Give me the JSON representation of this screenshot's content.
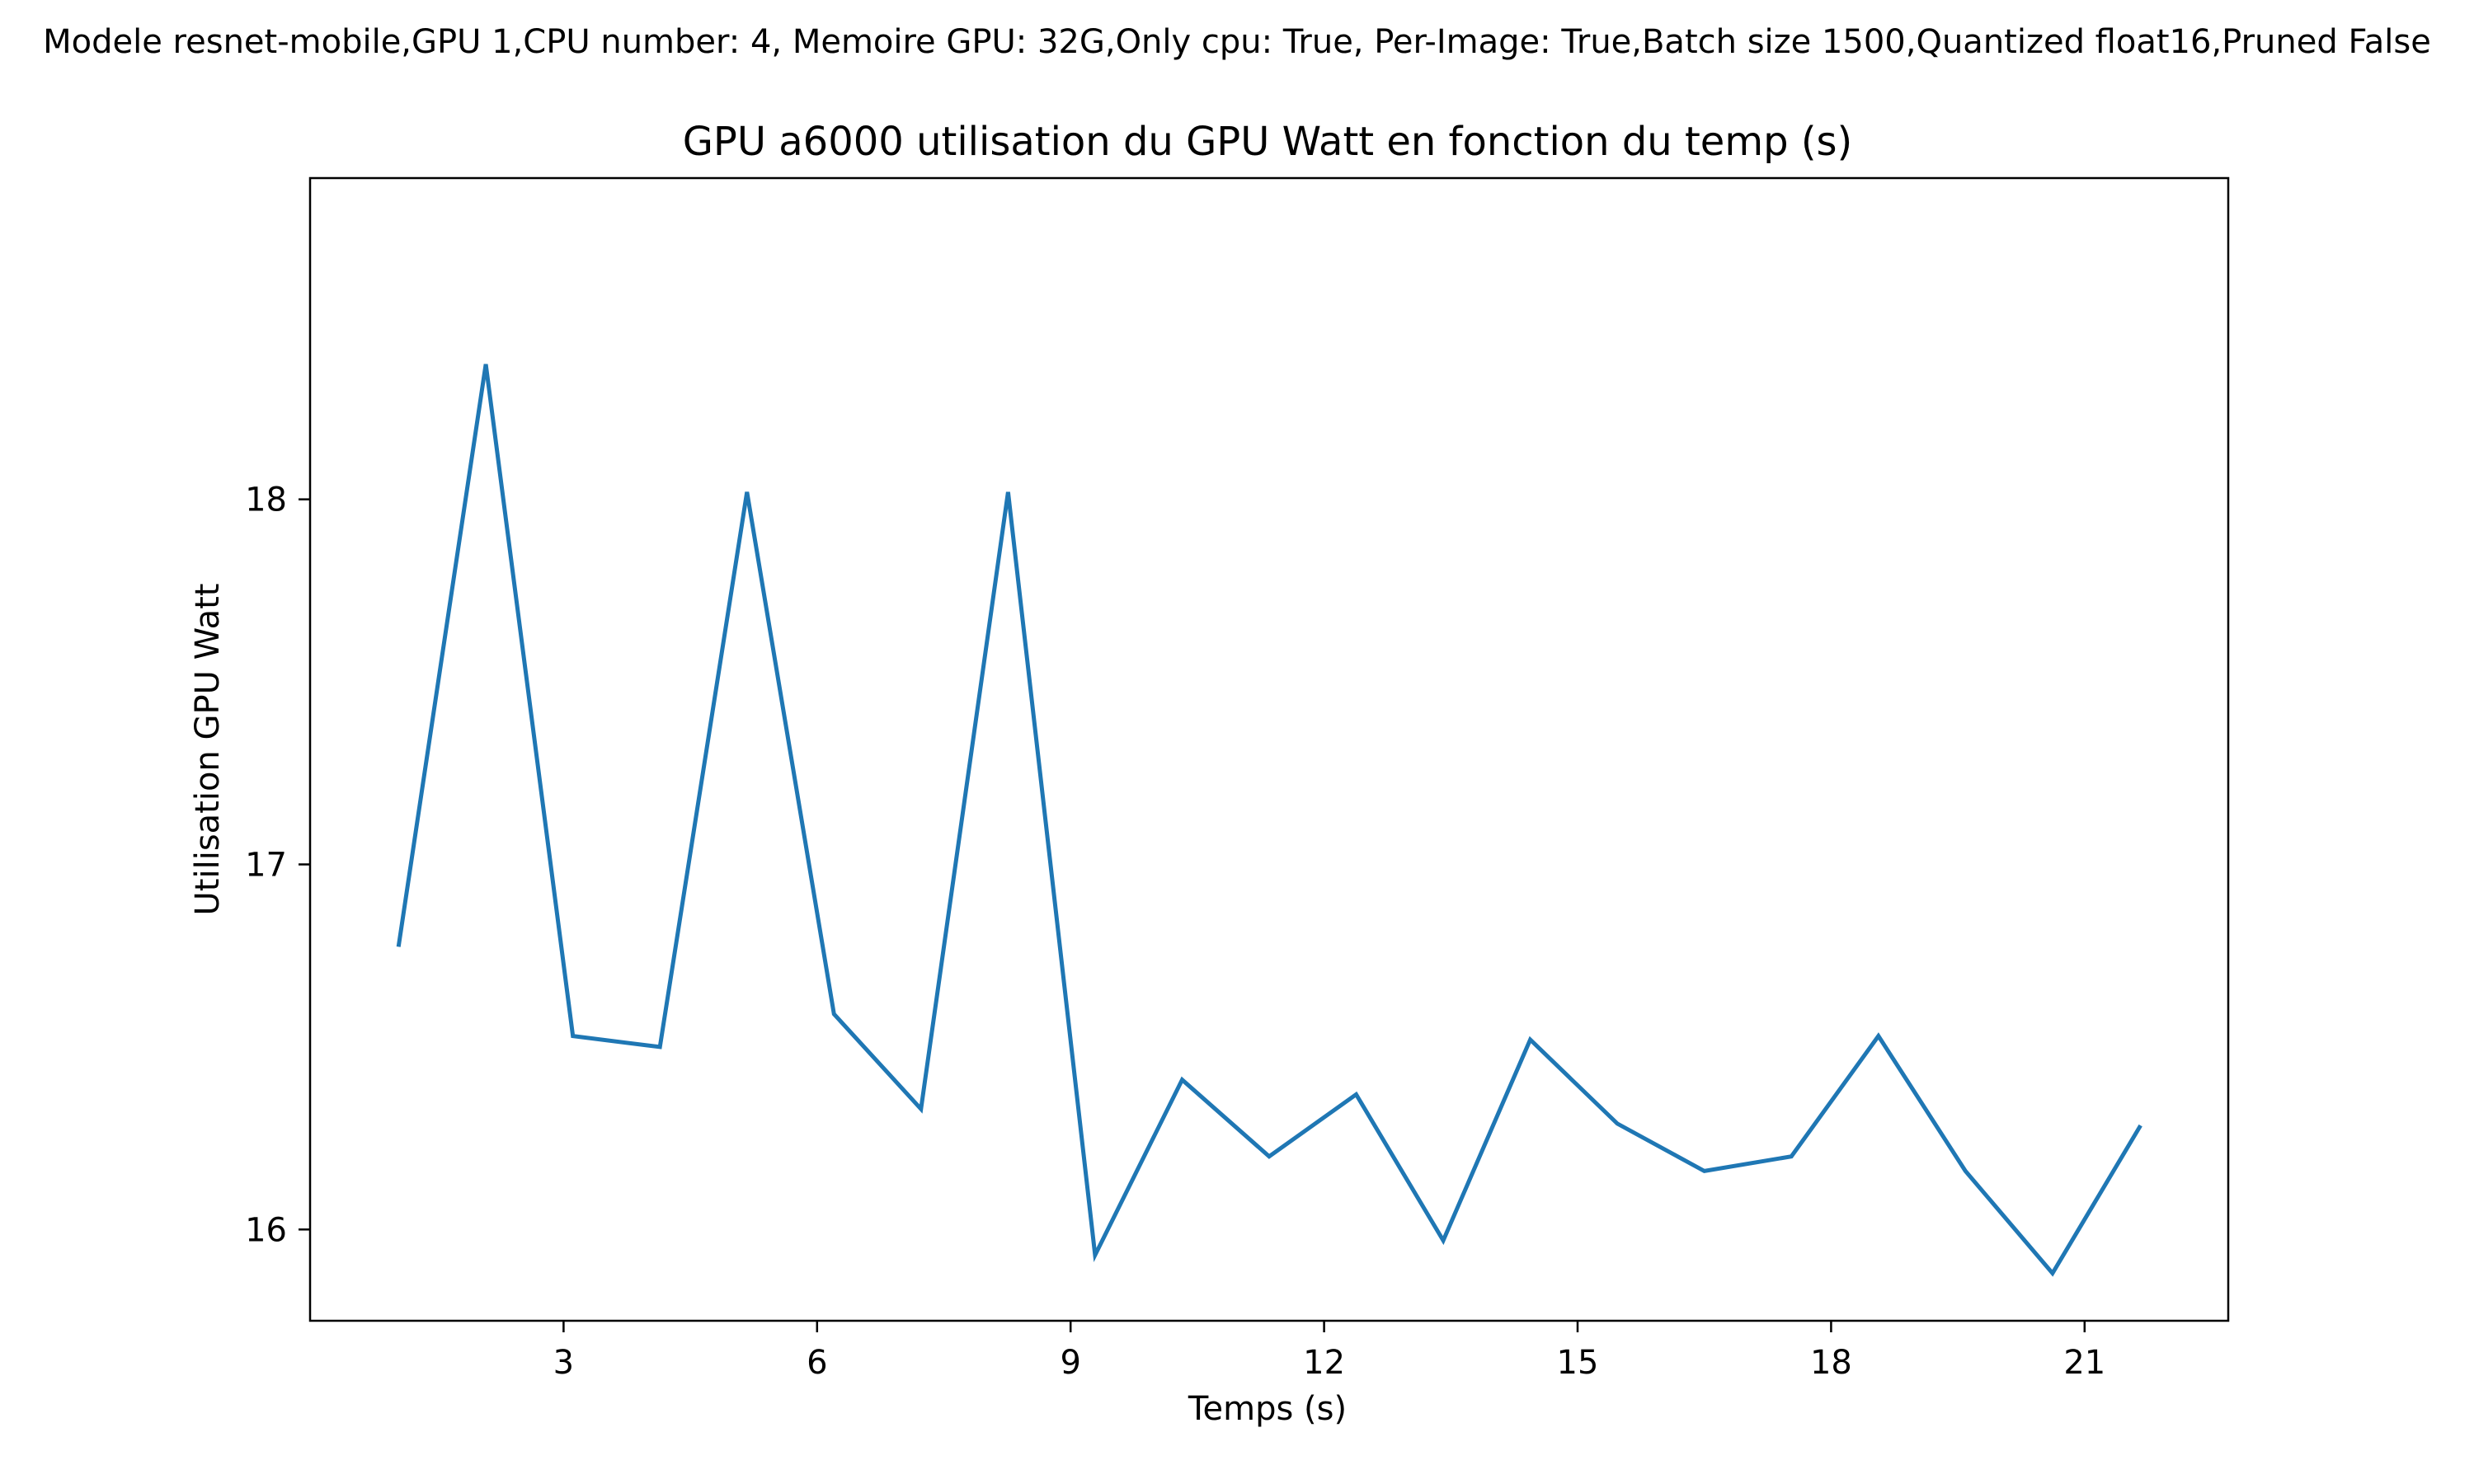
{
  "chart_data": {
    "type": "line",
    "suptitle": "Modele resnet-mobile,GPU 1,CPU number: 4, Memoire GPU: 32G,Only cpu: True, Per-Image: True,Batch size 1500,Quantized float16,Pruned False",
    "title": "GPU a6000 utilisation du GPU Watt en fonction du temp (s)",
    "xlabel": "Temps (s)",
    "ylabel": "Utilisation GPU Watt",
    "xlim": [
      0,
      22.7
    ],
    "ylim": [
      15.75,
      18.88
    ],
    "x_ticks": [
      3,
      6,
      9,
      12,
      15,
      18,
      21
    ],
    "x_tick_labels": [
      "3",
      "6",
      "9",
      "12",
      "15",
      "18",
      "21"
    ],
    "y_ticks": [
      16,
      17,
      18
    ],
    "y_tick_labels": [
      "16",
      "17",
      "18"
    ],
    "grid": false,
    "legend": "none",
    "colors": {
      "line": "#1f77b4",
      "axes": "#000000",
      "background": "#ffffff"
    },
    "series": [
      {
        "x": [
          1.05,
          2.08,
          3.11,
          4.14,
          5.17,
          6.2,
          7.23,
          8.26,
          9.29,
          10.32,
          11.35,
          12.38,
          13.41,
          14.44,
          15.47,
          16.5,
          17.53,
          18.56,
          19.59,
          20.62,
          21.65
        ],
        "y": [
          16.78,
          18.37,
          16.53,
          16.5,
          18.02,
          16.59,
          16.33,
          18.02,
          15.93,
          16.41,
          16.2,
          16.37,
          15.97,
          16.52,
          16.29,
          16.16,
          16.2,
          16.53,
          16.16,
          15.88,
          16.28
        ]
      }
    ]
  }
}
